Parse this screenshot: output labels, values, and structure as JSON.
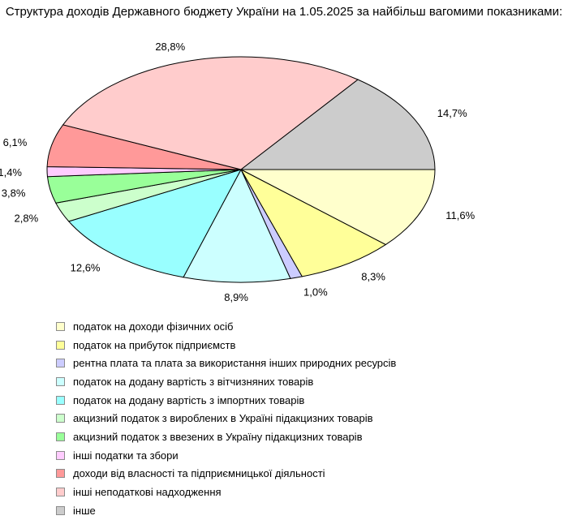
{
  "chart_data": {
    "type": "pie",
    "title": "Структура доходів Державного бюджету України на 1.05.2025 за найбільш вагомими показниками:",
    "legend_position": "bottom-left",
    "slices": [
      {
        "label": "податок на доходи фізичних осіб",
        "value": 11.6,
        "value_label": "11,6%",
        "color": "#ffffcc"
      },
      {
        "label": "податок на прибуток підприємств",
        "value": 8.3,
        "value_label": "8,3%",
        "color": "#ffff99"
      },
      {
        "label": "рентна плата та плата за використання інших природних ресурсів",
        "value": 1.0,
        "value_label": "1,0%",
        "color": "#ccccff"
      },
      {
        "label": "податок на додану вартість з вітчизняних товарів",
        "value": 8.9,
        "value_label": "8,9%",
        "color": "#ccffff"
      },
      {
        "label": "податок на додану вартість з імпортних товарів",
        "value": 12.6,
        "value_label": "12,6%",
        "color": "#99ffff"
      },
      {
        "label": "акцизний податок з вироблених в Україні підакцизних товарів",
        "value": 2.8,
        "value_label": "2,8%",
        "color": "#ccffcc"
      },
      {
        "label": "акцизний податок з ввезених в Україну підакцизних товарів",
        "value": 3.8,
        "value_label": "3,8%",
        "color": "#99ff99"
      },
      {
        "label": "інші податки та збори",
        "value": 1.4,
        "value_label": "1,4%",
        "color": "#ffccff"
      },
      {
        "label": "доходи від власності та підприємницької діяльності",
        "value": 6.1,
        "value_label": "6,1%",
        "color": "#ff9999"
      },
      {
        "label": "інші неподаткові надходження",
        "value": 28.8,
        "value_label": "28,8%",
        "color": "#ffcccc"
      },
      {
        "label": "інше",
        "value": 14.7,
        "value_label": "14,7%",
        "color": "#cccccc"
      }
    ]
  }
}
